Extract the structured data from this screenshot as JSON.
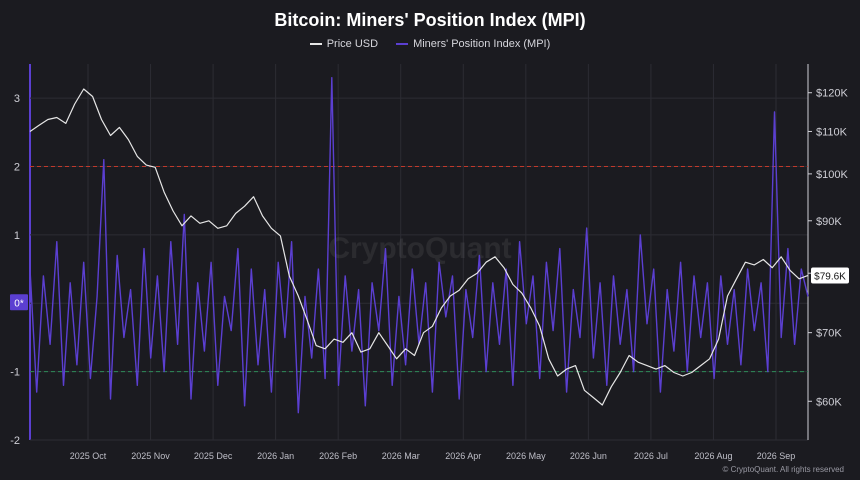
{
  "title": "Bitcoin: Miners' Position Index (MPI)",
  "watermark": "CryptoQuant",
  "copyright": "© CryptoQuant. All rights reserved",
  "colors": {
    "background": "#1b1b20",
    "price": "#e6e6e6",
    "mpi": "#5b3fd1",
    "threshold_high": "#c0392b",
    "threshold_low": "#2e8b57",
    "grid": "#2c2c33",
    "last_price_badge_bg": "#ffffff",
    "zero_badge_bg": "#5b3fd1"
  },
  "chart_data": {
    "type": "line",
    "title": "Bitcoin: Miners' Position Index (MPI)",
    "legend": {
      "position": "top-center",
      "entries": [
        "Price USD",
        "Miners' Position Index (MPI)"
      ]
    },
    "grid": true,
    "x_ticks": [
      "2025 Oct",
      "2025 Nov",
      "2025 Dec",
      "2026 Jan",
      "2026 Feb",
      "2026 Mar",
      "2026 Apr",
      "2026 May",
      "2026 Jun",
      "2026 Jul",
      "2026 Aug",
      "2026 Sep"
    ],
    "left_axis": {
      "ylim": [
        -2,
        3.5
      ],
      "ticks": [
        "3",
        "2",
        "1",
        "0",
        "-1",
        "-2"
      ],
      "zero_label": "0*"
    },
    "right_axis": {
      "scale": "log",
      "ylim": [
        55000,
        128000
      ],
      "ticks": [
        "$120K",
        "$110K",
        "$100K",
        "$90K",
        "$80K",
        "$70K",
        "$60K"
      ],
      "tick_values": [
        120000,
        110000,
        100000,
        90000,
        80000,
        70000,
        60000
      ]
    },
    "thresholds": [
      {
        "axis": "left",
        "value": 2,
        "color": "#c0392b",
        "style": "dashed"
      },
      {
        "axis": "left",
        "value": -1,
        "color": "#2e8b57",
        "style": "dashed"
      }
    ],
    "last_price_label": "$79.6K",
    "series": [
      {
        "name": "Price USD",
        "axis": "right",
        "x": [
          0,
          4,
          8,
          12,
          16,
          20,
          24,
          28,
          32,
          36,
          40,
          44,
          48,
          52,
          56,
          60,
          64,
          68,
          72,
          76,
          80,
          84,
          88,
          92,
          96,
          100,
          104,
          108,
          112,
          116,
          120,
          124,
          128,
          132,
          136,
          140,
          144,
          148,
          152,
          156,
          160,
          164,
          168,
          172,
          176,
          180,
          184,
          188,
          192,
          196,
          200,
          204,
          208,
          212,
          216,
          220,
          224,
          228,
          232,
          236,
          240,
          244,
          248,
          252,
          256,
          260,
          264,
          268,
          272,
          276,
          280,
          284,
          288,
          292,
          296,
          300,
          304,
          308,
          312,
          316,
          320,
          324,
          328,
          332,
          336,
          340,
          344,
          348
        ],
        "values": [
          110000,
          111500,
          113000,
          113500,
          112000,
          117000,
          121000,
          119000,
          113000,
          109000,
          111000,
          108000,
          104000,
          102000,
          101500,
          96000,
          92000,
          89000,
          91000,
          89500,
          90000,
          88500,
          89000,
          91500,
          93000,
          95000,
          91000,
          88500,
          87000,
          79500,
          76000,
          72000,
          68000,
          67500,
          69000,
          68500,
          70000,
          67000,
          67500,
          70000,
          68000,
          66000,
          67500,
          66500,
          70000,
          71000,
          74000,
          76000,
          77000,
          79000,
          80000,
          82000,
          83000,
          81000,
          78000,
          76500,
          74000,
          71000,
          66000,
          63500,
          64500,
          65000,
          61500,
          60500,
          59500,
          62000,
          64000,
          66500,
          65500,
          65000,
          64500,
          65000,
          64000,
          63500,
          64000,
          65000,
          66000,
          69000,
          76000,
          79000,
          82000,
          81500,
          82500,
          81000,
          83000,
          80500,
          79000,
          79600
        ]
      },
      {
        "name": "Miners' Position Index (MPI)",
        "axis": "left",
        "x": [
          0,
          3,
          6,
          9,
          12,
          15,
          18,
          21,
          24,
          27,
          30,
          33,
          36,
          39,
          42,
          45,
          48,
          51,
          54,
          57,
          60,
          63,
          66,
          69,
          72,
          75,
          78,
          81,
          84,
          87,
          90,
          93,
          96,
          99,
          102,
          105,
          108,
          111,
          114,
          117,
          120,
          123,
          126,
          129,
          132,
          135,
          138,
          141,
          144,
          147,
          150,
          153,
          156,
          159,
          162,
          165,
          168,
          171,
          174,
          177,
          180,
          183,
          186,
          189,
          192,
          195,
          198,
          201,
          204,
          207,
          210,
          213,
          216,
          219,
          222,
          225,
          228,
          231,
          234,
          237,
          240,
          243,
          246,
          249,
          252,
          255,
          258,
          261,
          264,
          267,
          270,
          273,
          276,
          279,
          282,
          285,
          288,
          291,
          294,
          297,
          300,
          303,
          306,
          309,
          312,
          315,
          318,
          321,
          324,
          327,
          330,
          333,
          336,
          339,
          342,
          345,
          348
        ],
        "values": [
          0.5,
          -1.3,
          0.4,
          -0.6,
          0.9,
          -1.2,
          0.3,
          -0.9,
          0.6,
          -1.1,
          0.1,
          2.1,
          -1.4,
          0.7,
          -0.5,
          0.2,
          -1.2,
          0.8,
          -0.8,
          0.4,
          -1.0,
          0.9,
          -0.6,
          1.3,
          -1.4,
          0.3,
          -0.7,
          0.6,
          -1.2,
          0.1,
          -0.4,
          0.8,
          -1.5,
          0.5,
          -0.9,
          0.2,
          -1.3,
          0.6,
          -0.5,
          0.9,
          -1.6,
          0.1,
          -0.8,
          0.5,
          -1.1,
          3.3,
          -1.2,
          0.4,
          -0.7,
          0.2,
          -1.5,
          0.3,
          -0.4,
          0.8,
          -1.2,
          0.1,
          -0.9,
          0.5,
          -0.6,
          0.3,
          -1.3,
          0.6,
          -0.2,
          0.4,
          -1.4,
          0.2,
          -0.5,
          0.7,
          -1.0,
          0.3,
          -0.6,
          0.5,
          -1.2,
          0.9,
          -0.3,
          0.4,
          -1.1,
          0.6,
          -0.4,
          0.8,
          -1.3,
          0.2,
          -0.5,
          1.1,
          -0.8,
          0.3,
          -1.2,
          0.4,
          -0.6,
          0.2,
          -1.0,
          1.0,
          -0.3,
          0.5,
          -1.3,
          0.2,
          -0.7,
          0.6,
          -1.0,
          0.4,
          -0.5,
          0.3,
          -1.1,
          0.4,
          -0.6,
          0.2,
          -0.9,
          0.5,
          -0.4,
          0.3,
          -1.0,
          2.8,
          -0.5,
          0.8,
          -0.6,
          0.5,
          0.1
        ]
      }
    ]
  }
}
